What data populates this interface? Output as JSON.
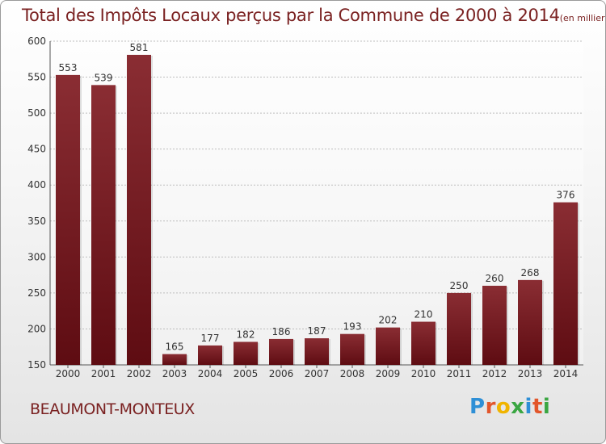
{
  "chart_data": {
    "type": "bar",
    "title": "Total des Impôts Locaux perçus par la Commune de 2000 à 2014",
    "unit_note": "(en milliers d'€)",
    "categories": [
      "2000",
      "2001",
      "2002",
      "2003",
      "2004",
      "2005",
      "2006",
      "2007",
      "2008",
      "2009",
      "2010",
      "2011",
      "2012",
      "2013",
      "2014"
    ],
    "values": [
      553,
      539,
      581,
      165,
      177,
      182,
      186,
      187,
      193,
      202,
      210,
      250,
      260,
      268,
      376
    ],
    "ylim": [
      150,
      600
    ],
    "yticks": [
      150,
      200,
      250,
      300,
      350,
      400,
      450,
      500,
      550,
      600
    ],
    "grid": true,
    "bar_color": "#7a1e24"
  },
  "footer": {
    "commune": "BEAUMONT-MONTEUX",
    "logo_letters": [
      "P",
      "r",
      "o",
      "x",
      "i",
      "t",
      "i"
    ],
    "logo_colors": [
      "#2e8fd6",
      "#e2562b",
      "#f0b400",
      "#3aa642",
      "#2e8fd6",
      "#e2562b",
      "#3aa642"
    ]
  }
}
